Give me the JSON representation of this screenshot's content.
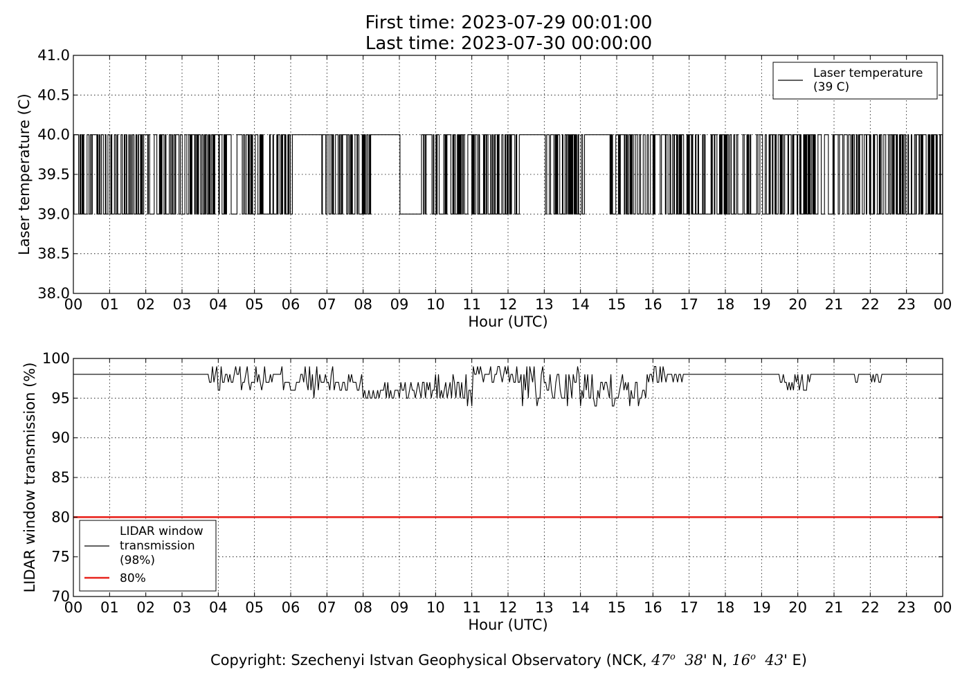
{
  "header": {
    "first_time": "First time: 2023-07-29 00:01:00",
    "last_time": "Last time: 2023-07-30 00:00:00"
  },
  "footer": {
    "copyright_prefix": "Copyright: Szechenyi Istvan Geophysical Observatory (NCK, ",
    "lat_deg": "47",
    "deg_sup": "o",
    "lat_min": "38",
    "lat_suffix": "' N, ",
    "lon_deg": "16",
    "lon_min": "43",
    "lon_suffix": "' E)"
  },
  "chart_data": [
    {
      "type": "line",
      "id": "laser",
      "xlabel": "Hour (UTC)",
      "ylabel": "Laser temperature (C)",
      "xlim": [
        0,
        24
      ],
      "ylim": [
        38.0,
        41.0
      ],
      "xticks": [
        "00",
        "01",
        "02",
        "03",
        "04",
        "05",
        "06",
        "07",
        "08",
        "09",
        "10",
        "11",
        "12",
        "13",
        "14",
        "15",
        "16",
        "17",
        "18",
        "19",
        "20",
        "21",
        "22",
        "23",
        "00"
      ],
      "yticks": [
        "38.0",
        "38.5",
        "39.0",
        "39.5",
        "40.0",
        "40.5",
        "41.0"
      ],
      "grid": true,
      "legend_position": "upper right",
      "series": [
        {
          "name": "Laser temperature\n(39 C)",
          "color": "#000000",
          "values_low": 39.0,
          "values_high": 40.0,
          "description_segments": [
            {
              "from": 0.0,
              "to": 6.2,
              "pattern": "toggle"
            },
            {
              "from": 6.2,
              "to": 6.8,
              "pattern": "high"
            },
            {
              "from": 6.8,
              "to": 8.2,
              "pattern": "toggle"
            },
            {
              "from": 8.2,
              "to": 9.0,
              "pattern": "high"
            },
            {
              "from": 9.0,
              "to": 9.6,
              "pattern": "low"
            },
            {
              "from": 9.6,
              "to": 12.3,
              "pattern": "toggle"
            },
            {
              "from": 12.3,
              "to": 13.0,
              "pattern": "high"
            },
            {
              "from": 13.0,
              "to": 14.1,
              "pattern": "toggle"
            },
            {
              "from": 14.1,
              "to": 14.8,
              "pattern": "high"
            },
            {
              "from": 14.8,
              "to": 24.0,
              "pattern": "toggle"
            }
          ]
        }
      ]
    },
    {
      "type": "line",
      "id": "transmission",
      "xlabel": "Hour (UTC)",
      "ylabel": "LIDAR window transmission (%)",
      "xlim": [
        0,
        24
      ],
      "ylim": [
        70,
        100
      ],
      "xticks": [
        "00",
        "01",
        "02",
        "03",
        "04",
        "05",
        "06",
        "07",
        "08",
        "09",
        "10",
        "11",
        "12",
        "13",
        "14",
        "15",
        "16",
        "17",
        "18",
        "19",
        "20",
        "21",
        "22",
        "23",
        "00"
      ],
      "yticks": [
        "70",
        "75",
        "80",
        "85",
        "90",
        "95",
        "100"
      ],
      "grid": true,
      "legend_position": "lower left",
      "series": [
        {
          "name": "LIDAR window\ntransmission\n(98%)",
          "color": "#000000",
          "baseline": 98,
          "noisy_segments": [
            {
              "from": 3.7,
              "to": 6.0,
              "min": 96,
              "max": 99
            },
            {
              "from": 6.0,
              "to": 8.0,
              "min": 95,
              "max": 99
            },
            {
              "from": 8.0,
              "to": 9.8,
              "min": 95,
              "max": 97
            },
            {
              "from": 9.8,
              "to": 11.0,
              "min": 94,
              "max": 98
            },
            {
              "from": 11.0,
              "to": 12.3,
              "min": 97,
              "max": 99
            },
            {
              "from": 12.3,
              "to": 15.8,
              "min": 94,
              "max": 99
            },
            {
              "from": 15.8,
              "to": 16.8,
              "min": 97,
              "max": 99
            },
            {
              "from": 19.5,
              "to": 20.4,
              "min": 96,
              "max": 98
            },
            {
              "from": 21.5,
              "to": 22.3,
              "min": 97,
              "max": 98
            }
          ]
        },
        {
          "name": "80%",
          "color": "#e8231c",
          "constant": 80
        }
      ]
    }
  ]
}
